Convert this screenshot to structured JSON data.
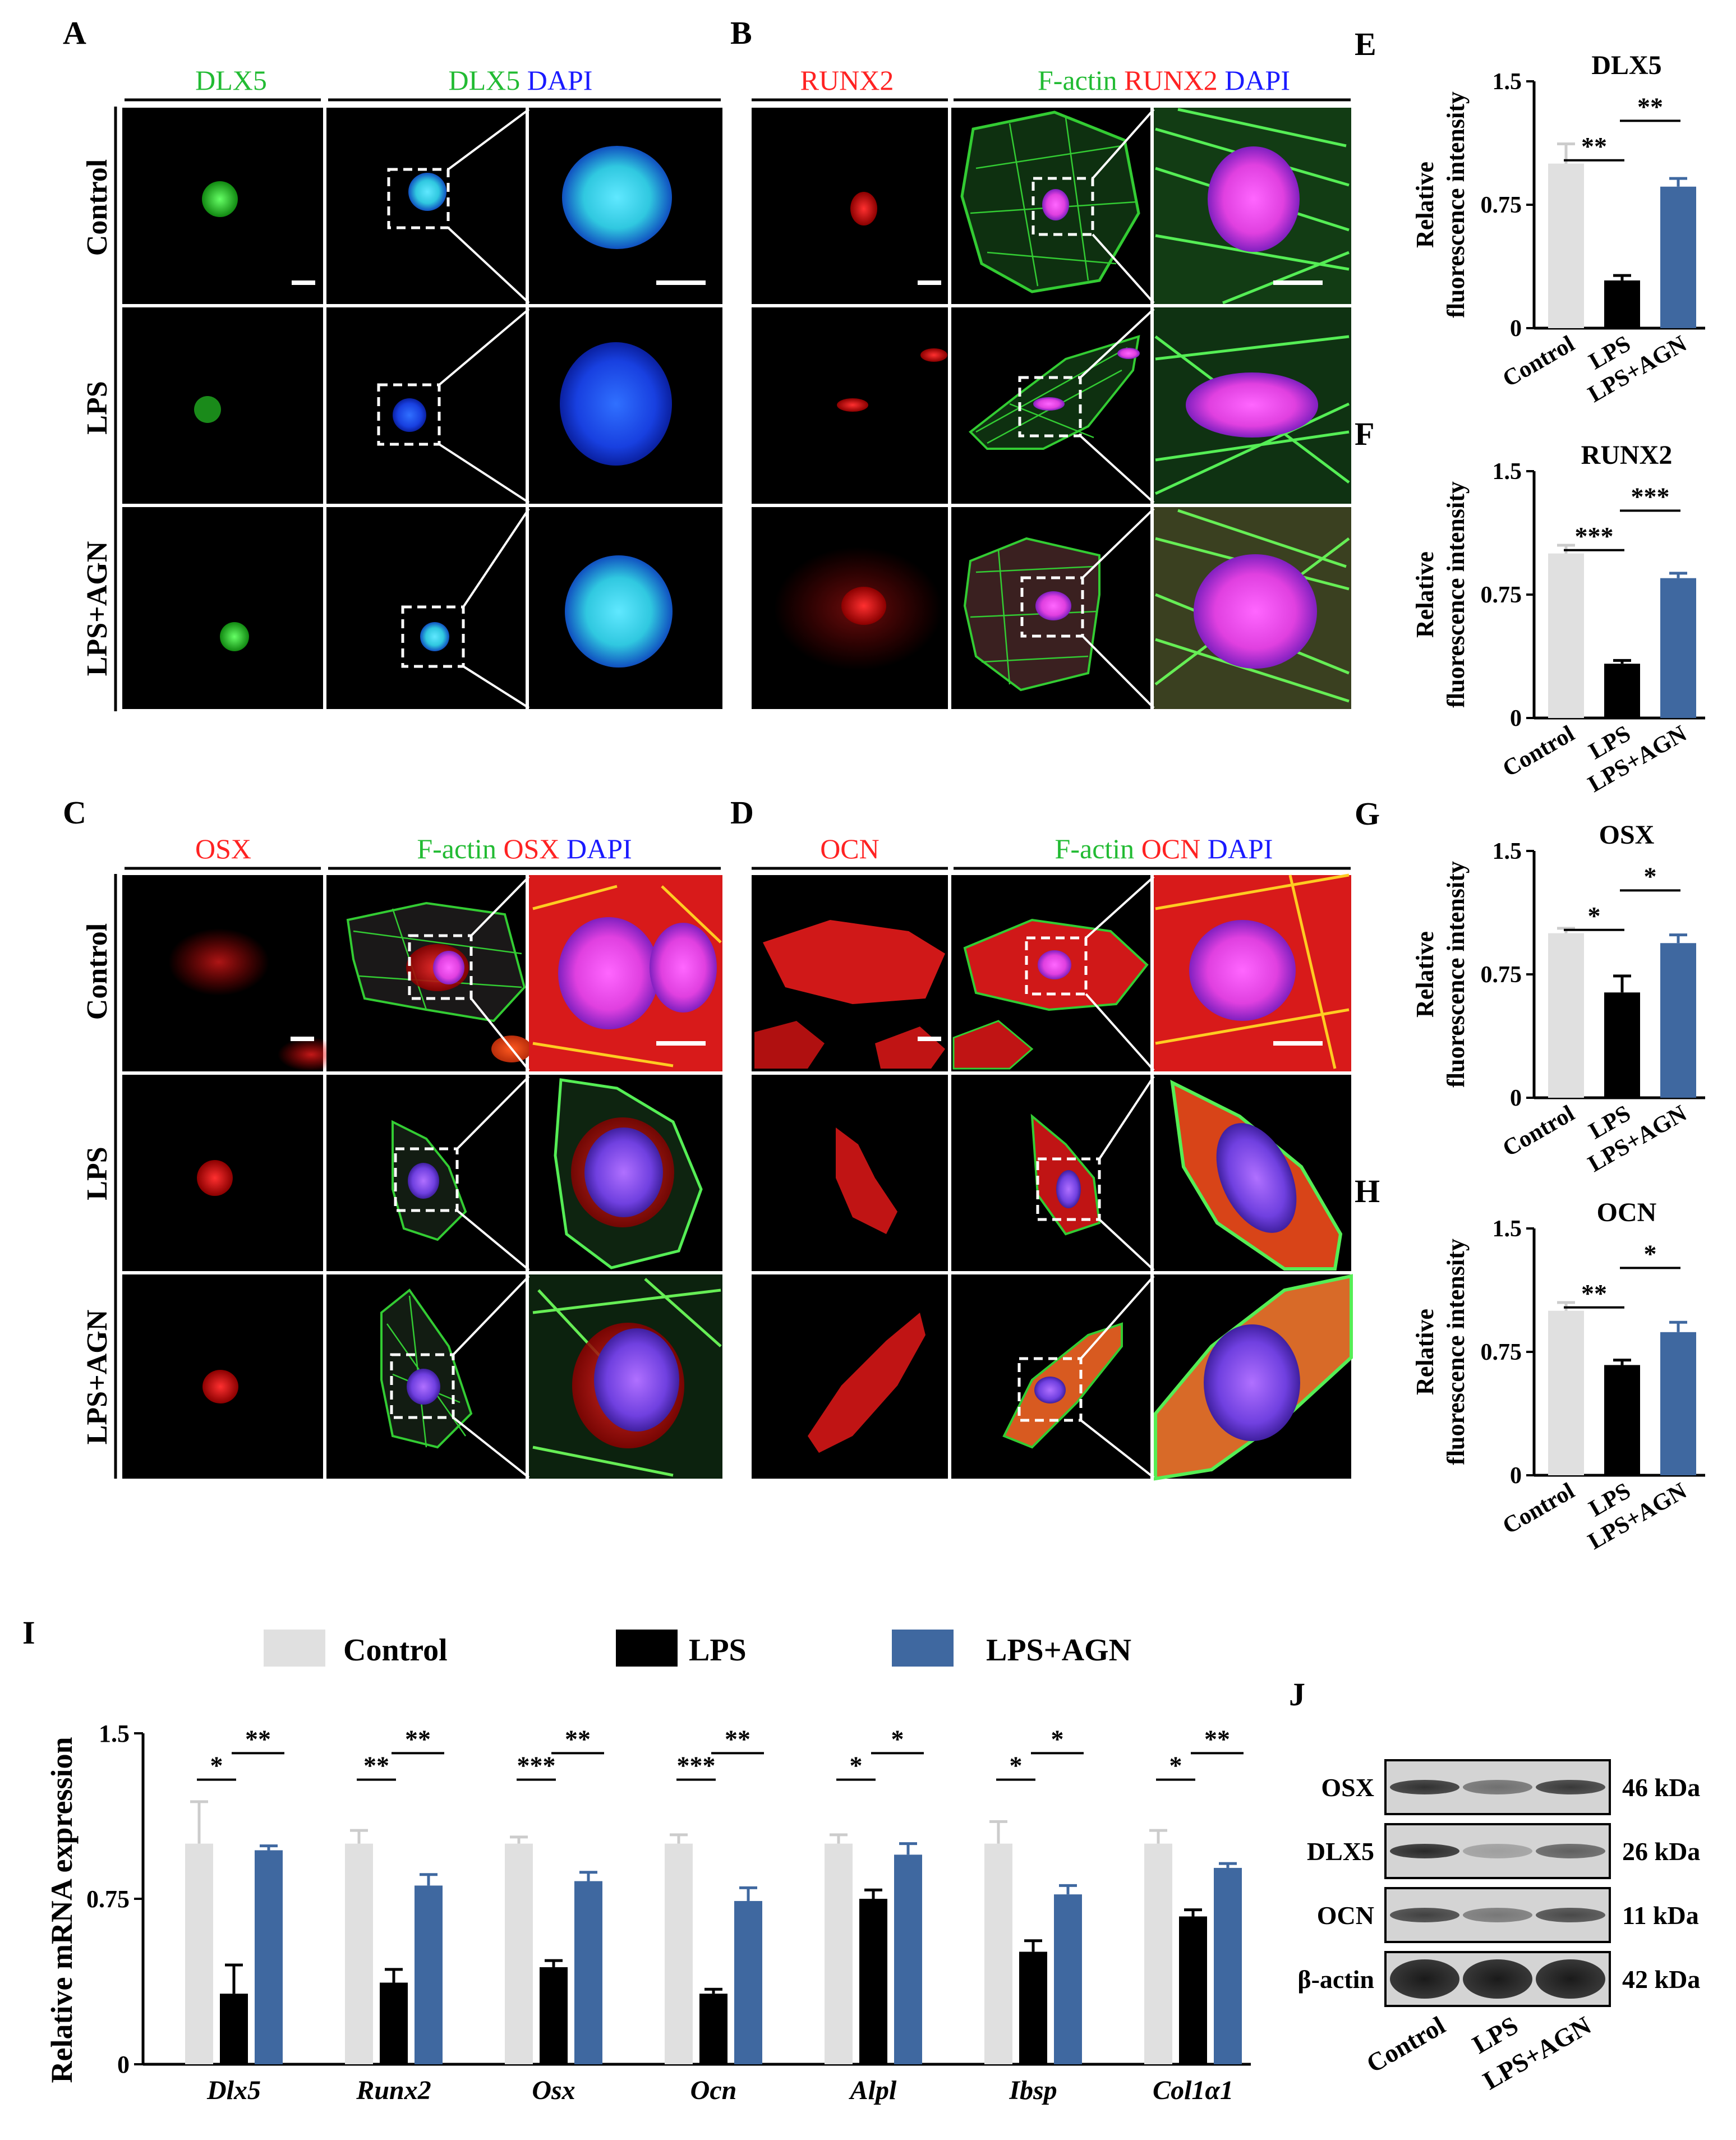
{
  "colors": {
    "control": "#e0e0e0",
    "lps": "#000000",
    "lps_agn": "#3f68a0",
    "green": "#22bb33",
    "red": "#ff2222",
    "blue": "#1a1aff"
  },
  "panel_a": {
    "letter": "A",
    "header_left": "DLX5",
    "header_right": [
      "DLX5",
      "DAPI"
    ],
    "rows": [
      "Control",
      "LPS",
      "LPS+AGN"
    ]
  },
  "panel_b": {
    "letter": "B",
    "header_left": "RUNX2",
    "header_right": [
      "F-actin",
      "RUNX2",
      "DAPI"
    ]
  },
  "panel_c": {
    "letter": "C",
    "header_left": "OSX",
    "header_right": [
      "F-actin",
      "OSX",
      "DAPI"
    ],
    "rows": [
      "Control",
      "LPS",
      "LPS+AGN"
    ]
  },
  "panel_d": {
    "letter": "D",
    "header_left": "OCN",
    "header_right": [
      "F-actin",
      "OCN",
      "DAPI"
    ]
  },
  "bar_panels": [
    {
      "letter": "E",
      "chart_data": {
        "type": "bar",
        "title": "DLX5",
        "ylabel_lines": [
          "Relative",
          "fluorescence intensity"
        ],
        "categories": [
          "Control",
          "LPS",
          "LPS+AGN"
        ],
        "values": [
          1.0,
          0.29,
          0.86
        ],
        "errors": [
          0.12,
          0.03,
          0.05
        ],
        "ylim": [
          0,
          1.5
        ],
        "yticks": [
          "0",
          "0.75",
          "1.5"
        ],
        "significance": [
          {
            "from": 0,
            "to": 1,
            "label": "**"
          },
          {
            "from": 1,
            "to": 2,
            "label": "**"
          }
        ]
      }
    },
    {
      "letter": "F",
      "chart_data": {
        "type": "bar",
        "title": "RUNX2",
        "ylabel_lines": [
          "Relative",
          "fluorescence intensity"
        ],
        "categories": [
          "Control",
          "LPS",
          "LPS+AGN"
        ],
        "values": [
          1.0,
          0.33,
          0.85
        ],
        "errors": [
          0.05,
          0.02,
          0.03
        ],
        "ylim": [
          0,
          1.5
        ],
        "yticks": [
          "0",
          "0.75",
          "1.5"
        ],
        "significance": [
          {
            "from": 0,
            "to": 1,
            "label": "***"
          },
          {
            "from": 1,
            "to": 2,
            "label": "***"
          }
        ]
      }
    },
    {
      "letter": "G",
      "chart_data": {
        "type": "bar",
        "title": "OSX",
        "ylabel_lines": [
          "Relative",
          "fluorescence intensity"
        ],
        "categories": [
          "Control",
          "LPS",
          "LPS+AGN"
        ],
        "values": [
          1.0,
          0.64,
          0.94
        ],
        "errors": [
          0.03,
          0.1,
          0.05
        ],
        "ylim": [
          0,
          1.5
        ],
        "yticks": [
          "0",
          "0.75",
          "1.5"
        ],
        "significance": [
          {
            "from": 0,
            "to": 1,
            "label": "*"
          },
          {
            "from": 1,
            "to": 2,
            "label": "*"
          }
        ]
      }
    },
    {
      "letter": "H",
      "chart_data": {
        "type": "bar",
        "title": "OCN",
        "ylabel_lines": [
          "Relative",
          "fluorescence intensity"
        ],
        "categories": [
          "Control",
          "LPS",
          "LPS+AGN"
        ],
        "values": [
          1.0,
          0.67,
          0.87
        ],
        "errors": [
          0.05,
          0.03,
          0.06
        ],
        "ylim": [
          0,
          1.5
        ],
        "yticks": [
          "0",
          "0.75",
          "1.5"
        ],
        "significance": [
          {
            "from": 0,
            "to": 1,
            "label": "**"
          },
          {
            "from": 1,
            "to": 2,
            "label": "*"
          }
        ]
      }
    }
  ],
  "panel_i": {
    "letter": "I",
    "chart_data": {
      "type": "bar",
      "ylabel": "Relative mRNA expression",
      "ylim": [
        0,
        1.5
      ],
      "yticks": [
        "0",
        "0.75",
        "1.5"
      ],
      "categories": [
        "Dlx5",
        "Runx2",
        "Osx",
        "Ocn",
        "Alpl",
        "Ibsp",
        "Col1α1"
      ],
      "series": [
        {
          "name": "Control",
          "values": [
            1.0,
            1.0,
            1.0,
            1.0,
            1.0,
            1.0,
            1.0
          ],
          "errors": [
            0.19,
            0.06,
            0.03,
            0.04,
            0.04,
            0.1,
            0.06
          ]
        },
        {
          "name": "LPS",
          "values": [
            0.32,
            0.37,
            0.44,
            0.32,
            0.75,
            0.51,
            0.67
          ],
          "errors": [
            0.13,
            0.06,
            0.03,
            0.02,
            0.04,
            0.05,
            0.03
          ]
        },
        {
          "name": "LPS+AGN",
          "values": [
            0.97,
            0.81,
            0.83,
            0.74,
            0.95,
            0.77,
            0.89
          ],
          "errors": [
            0.02,
            0.05,
            0.04,
            0.06,
            0.05,
            0.04,
            0.02
          ]
        }
      ],
      "significance": [
        {
          "left": "*",
          "right": "**"
        },
        {
          "left": "**",
          "right": "**"
        },
        {
          "left": "***",
          "right": "**"
        },
        {
          "left": "***",
          "right": "**"
        },
        {
          "left": "*",
          "right": "*"
        },
        {
          "left": "*",
          "right": "*"
        },
        {
          "left": "*",
          "right": "**"
        }
      ]
    }
  },
  "panel_j": {
    "letter": "J",
    "rows": [
      {
        "protein": "OSX",
        "size": "46 kDa",
        "intensities": [
          0.85,
          0.45,
          0.8
        ]
      },
      {
        "protein": "DLX5",
        "size": "26 kDa",
        "intensities": [
          0.9,
          0.15,
          0.55
        ]
      },
      {
        "protein": "OCN",
        "size": "11 kDa",
        "intensities": [
          0.75,
          0.4,
          0.7
        ]
      },
      {
        "protein": "β-actin",
        "size": "42 kDa",
        "intensities": [
          1.0,
          1.0,
          1.0
        ]
      }
    ],
    "lanes": [
      "Control",
      "LPS",
      "LPS+AGN"
    ]
  }
}
